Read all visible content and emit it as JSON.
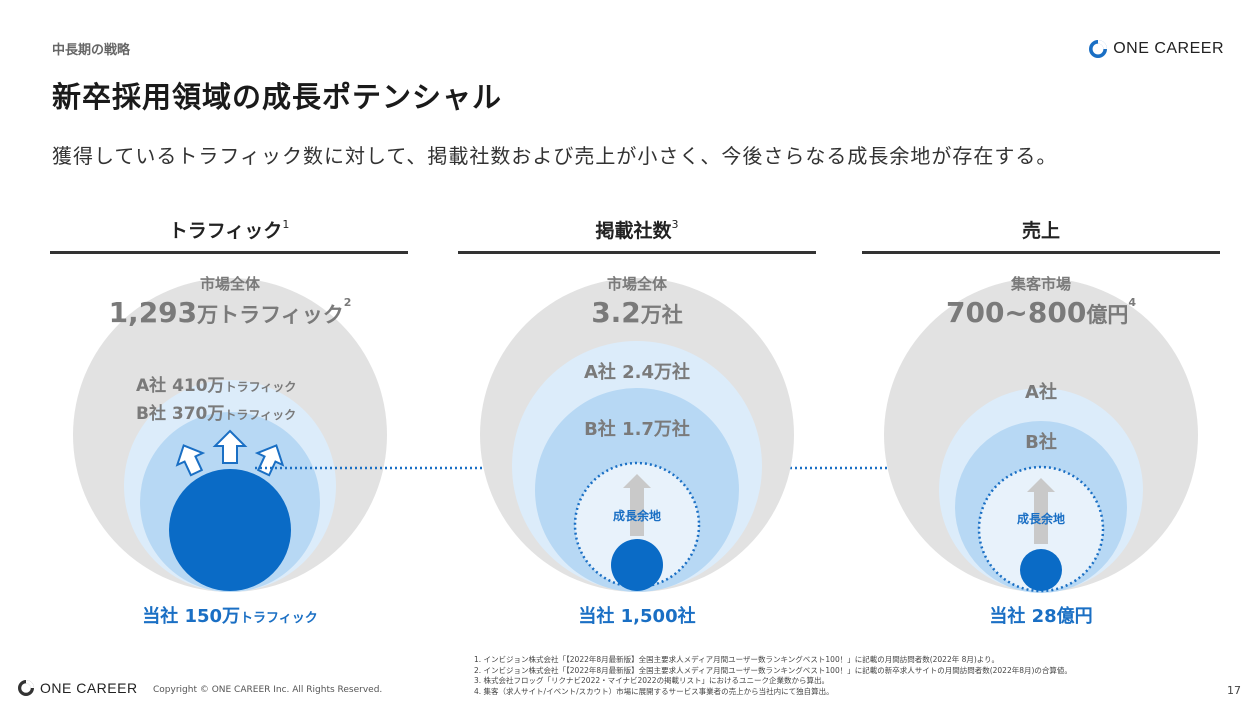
{
  "header": {
    "section": "中長期の戦略",
    "title": "新卒採用領域の成長ポテンシャル",
    "subtitle": "獲得しているトラフィック数に対して、掲載社数および売上が小さく、今後さらなる成長余地が存在する。",
    "brand": "ONE CAREER"
  },
  "columns": [
    {
      "heading": "トラフィック",
      "heading_note": "1",
      "market_label": "市場全体",
      "market_value_num": "1,293",
      "market_value_unit": "万トラフィック",
      "market_note": "2",
      "competitor_a": "A社 410万",
      "competitor_a_unit": "トラフィック",
      "competitor_b": "B社 370万",
      "competitor_b_unit": "トラフィック",
      "ours_label": "当社 150万",
      "ours_unit": "トラフィック"
    },
    {
      "heading": "掲載社数",
      "heading_note": "3",
      "market_label": "市場全体",
      "market_value_num": "3.2",
      "market_value_unit": "万社",
      "competitor_a": "A社 2.4万社",
      "competitor_b": "B社 1.7万社",
      "growth_label": "成長余地",
      "ours_label": "当社 1,500社"
    },
    {
      "heading": "売上",
      "market_label": "集客市場",
      "market_value_num": "700~800",
      "market_value_unit": "億円",
      "market_note": "4",
      "competitor_a": "A社",
      "competitor_b": "B社",
      "growth_label": "成長余地",
      "ours_label": "当社 28億円"
    }
  ],
  "colors": {
    "market_gray": "#e2e2e2",
    "light_blue": "#dcecfa",
    "mid_blue": "#b7d8f4",
    "ours_blue": "#0a6bc6",
    "text_blue": "#1a6fc4"
  },
  "footnotes": [
    "1.  インビジョン株式会社「【2022年8月最新版】全国主要求人メディア月間ユーザー数ランキングベスト100！」に記載の月間訪問者数(2022年 8月)より。",
    "2.  インビジョン株式会社「【2022年8月最新版】全国主要求人メディア月間ユーザー数ランキングベスト100！」に記載の新卒求人サイトの月間訪問者数(2022年8月)の合算値。",
    "3.  株式会社フロッグ「リクナビ2022・マイナビ2022の掲載リスト」におけるユニーク企業数から算出。",
    "4.  集客（求人サイト/イベント/スカウト）市場に展開するサービス事業者の売上から当社内にて独自算出。"
  ],
  "footer": {
    "brand": "ONE CAREER",
    "copyright": "Copyright © ONE CAREER Inc. All Rights Reserved.",
    "page": "17"
  }
}
